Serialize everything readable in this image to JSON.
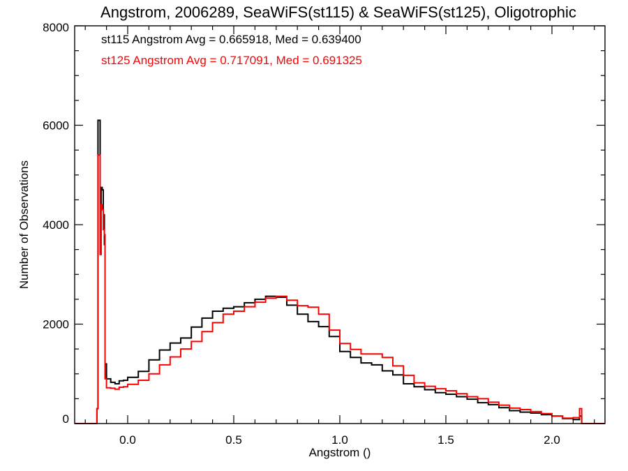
{
  "chart_data": {
    "type": "histogram-step",
    "title": "Angstrom, 2006289, SeaWiFS(st115) & SeaWiFS(st125), Oligotrophic",
    "xlabel": "Angstrom ()",
    "ylabel": "Number of Observations",
    "xlim": [
      -0.25,
      2.25
    ],
    "ylim": [
      0,
      8000
    ],
    "xticks": [
      {
        "value": 0.0,
        "label": "0.0"
      },
      {
        "value": 0.5,
        "label": "0.5"
      },
      {
        "value": 1.0,
        "label": "1.0"
      },
      {
        "value": 1.5,
        "label": "1.5"
      },
      {
        "value": 2.0,
        "label": "2.0"
      }
    ],
    "yticks": [
      {
        "value": 0,
        "label": "0"
      },
      {
        "value": 2000,
        "label": "2000"
      },
      {
        "value": 4000,
        "label": "4000"
      },
      {
        "value": 6000,
        "label": "6000"
      },
      {
        "value": 8000,
        "label": "8000"
      }
    ],
    "grid": false,
    "annotations": [
      {
        "text": "st115 Angstrom Avg = 0.665918, Med = 0.639400",
        "color": "#000000"
      },
      {
        "text": "st125 Angstrom Avg = 0.717091, Med = 0.691325",
        "color": "#ff0000"
      }
    ],
    "series": [
      {
        "color": "#000000",
        "points": [
          [
            -0.25,
            0
          ],
          [
            -0.15,
            0
          ],
          [
            -0.145,
            300
          ],
          [
            -0.14,
            6100
          ],
          [
            -0.13,
            4400
          ],
          [
            -0.125,
            4750
          ],
          [
            -0.12,
            4700
          ],
          [
            -0.115,
            4200
          ],
          [
            -0.11,
            3600
          ],
          [
            -0.107,
            1200
          ],
          [
            -0.1,
            900
          ],
          [
            -0.08,
            830
          ],
          [
            -0.06,
            800
          ],
          [
            -0.04,
            860
          ],
          [
            -0.02,
            870
          ],
          [
            0.0,
            930
          ],
          [
            0.05,
            1050
          ],
          [
            0.1,
            1280
          ],
          [
            0.15,
            1480
          ],
          [
            0.2,
            1620
          ],
          [
            0.25,
            1720
          ],
          [
            0.3,
            1940
          ],
          [
            0.35,
            2120
          ],
          [
            0.4,
            2260
          ],
          [
            0.45,
            2320
          ],
          [
            0.5,
            2350
          ],
          [
            0.55,
            2430
          ],
          [
            0.6,
            2500
          ],
          [
            0.65,
            2560
          ],
          [
            0.7,
            2540
          ],
          [
            0.75,
            2380
          ],
          [
            0.8,
            2200
          ],
          [
            0.85,
            2050
          ],
          [
            0.9,
            1950
          ],
          [
            0.95,
            1750
          ],
          [
            1.0,
            1450
          ],
          [
            1.05,
            1330
          ],
          [
            1.1,
            1220
          ],
          [
            1.15,
            1180
          ],
          [
            1.2,
            1060
          ],
          [
            1.25,
            980
          ],
          [
            1.3,
            800
          ],
          [
            1.35,
            740
          ],
          [
            1.4,
            680
          ],
          [
            1.45,
            620
          ],
          [
            1.5,
            590
          ],
          [
            1.55,
            540
          ],
          [
            1.6,
            490
          ],
          [
            1.65,
            420
          ],
          [
            1.7,
            380
          ],
          [
            1.75,
            320
          ],
          [
            1.8,
            260
          ],
          [
            1.85,
            230
          ],
          [
            1.9,
            210
          ],
          [
            1.95,
            180
          ],
          [
            2.0,
            150
          ],
          [
            2.05,
            100
          ],
          [
            2.1,
            80
          ],
          [
            2.13,
            150
          ],
          [
            2.14,
            0
          ],
          [
            2.25,
            0
          ]
        ]
      },
      {
        "color": "#ff0000",
        "points": [
          [
            -0.25,
            0
          ],
          [
            -0.15,
            0
          ],
          [
            -0.145,
            300
          ],
          [
            -0.14,
            5400
          ],
          [
            -0.13,
            3400
          ],
          [
            -0.125,
            4400
          ],
          [
            -0.12,
            4300
          ],
          [
            -0.115,
            3900
          ],
          [
            -0.11,
            3800
          ],
          [
            -0.107,
            900
          ],
          [
            -0.1,
            720
          ],
          [
            -0.08,
            710
          ],
          [
            -0.06,
            690
          ],
          [
            -0.04,
            730
          ],
          [
            -0.02,
            740
          ],
          [
            0.0,
            790
          ],
          [
            0.05,
            870
          ],
          [
            0.1,
            1000
          ],
          [
            0.15,
            1180
          ],
          [
            0.2,
            1340
          ],
          [
            0.25,
            1500
          ],
          [
            0.3,
            1650
          ],
          [
            0.35,
            1850
          ],
          [
            0.4,
            2030
          ],
          [
            0.45,
            2200
          ],
          [
            0.5,
            2260
          ],
          [
            0.55,
            2350
          ],
          [
            0.6,
            2440
          ],
          [
            0.65,
            2520
          ],
          [
            0.7,
            2560
          ],
          [
            0.75,
            2480
          ],
          [
            0.8,
            2370
          ],
          [
            0.85,
            2340
          ],
          [
            0.9,
            2200
          ],
          [
            0.95,
            1880
          ],
          [
            1.0,
            1610
          ],
          [
            1.05,
            1490
          ],
          [
            1.1,
            1400
          ],
          [
            1.15,
            1400
          ],
          [
            1.2,
            1330
          ],
          [
            1.25,
            1160
          ],
          [
            1.3,
            970
          ],
          [
            1.35,
            820
          ],
          [
            1.4,
            750
          ],
          [
            1.45,
            700
          ],
          [
            1.5,
            660
          ],
          [
            1.55,
            600
          ],
          [
            1.6,
            540
          ],
          [
            1.65,
            500
          ],
          [
            1.7,
            430
          ],
          [
            1.75,
            370
          ],
          [
            1.8,
            310
          ],
          [
            1.85,
            280
          ],
          [
            1.9,
            240
          ],
          [
            1.95,
            200
          ],
          [
            2.0,
            150
          ],
          [
            2.05,
            110
          ],
          [
            2.1,
            120
          ],
          [
            2.13,
            300
          ],
          [
            2.14,
            0
          ],
          [
            2.25,
            0
          ]
        ]
      }
    ]
  }
}
